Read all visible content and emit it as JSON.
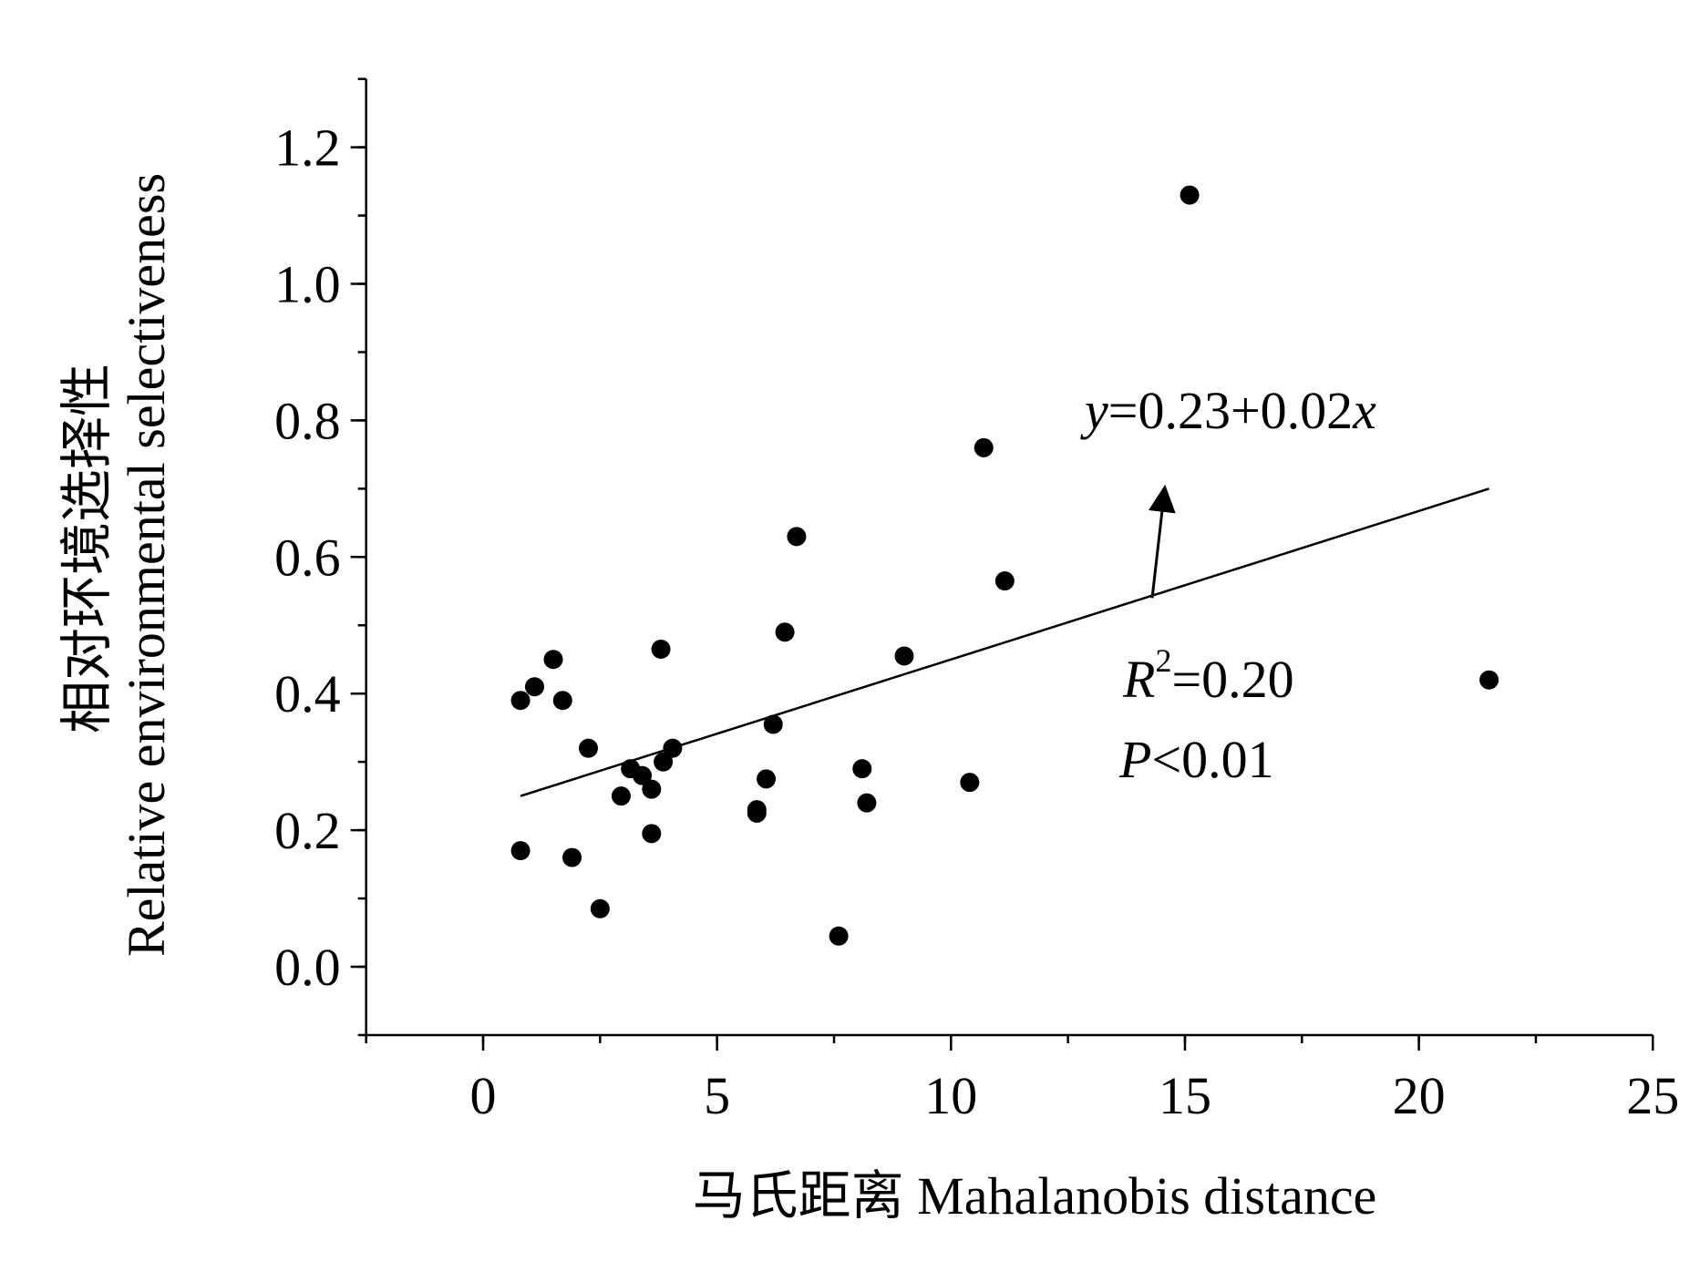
{
  "chart_data": {
    "type": "scatter",
    "xlabel": "马氏距离 Mahalanobis distance",
    "ylabel_line1": "相对环境选择性",
    "ylabel_line2": "Relative environmental selectiveness",
    "xlim": [
      -2.5,
      25
    ],
    "ylim": [
      -0.1,
      1.3
    ],
    "x_ticks": [
      0,
      5,
      10,
      15,
      20,
      25
    ],
    "x_tick_labels": [
      "0",
      "5",
      "10",
      "15",
      "20",
      "25"
    ],
    "y_ticks": [
      0.0,
      0.2,
      0.4,
      0.6,
      0.8,
      1.0,
      1.2
    ],
    "y_tick_labels": [
      "0.0",
      "0.2",
      "0.4",
      "0.6",
      "0.8",
      "1.0",
      "1.2"
    ],
    "points": [
      {
        "x": 0.8,
        "y": 0.17
      },
      {
        "x": 0.8,
        "y": 0.39
      },
      {
        "x": 1.1,
        "y": 0.41
      },
      {
        "x": 1.5,
        "y": 0.45
      },
      {
        "x": 1.7,
        "y": 0.39
      },
      {
        "x": 1.9,
        "y": 0.16
      },
      {
        "x": 2.25,
        "y": 0.32
      },
      {
        "x": 2.5,
        "y": 0.085
      },
      {
        "x": 2.95,
        "y": 0.25
      },
      {
        "x": 3.15,
        "y": 0.29
      },
      {
        "x": 3.4,
        "y": 0.28
      },
      {
        "x": 3.6,
        "y": 0.26
      },
      {
        "x": 3.6,
        "y": 0.195
      },
      {
        "x": 3.8,
        "y": 0.465
      },
      {
        "x": 3.85,
        "y": 0.3
      },
      {
        "x": 4.05,
        "y": 0.32
      },
      {
        "x": 5.85,
        "y": 0.23
      },
      {
        "x": 5.85,
        "y": 0.225
      },
      {
        "x": 6.05,
        "y": 0.275
      },
      {
        "x": 6.2,
        "y": 0.355
      },
      {
        "x": 6.45,
        "y": 0.49
      },
      {
        "x": 6.7,
        "y": 0.63
      },
      {
        "x": 7.6,
        "y": 0.045
      },
      {
        "x": 8.1,
        "y": 0.29
      },
      {
        "x": 8.2,
        "y": 0.24
      },
      {
        "x": 9.0,
        "y": 0.455
      },
      {
        "x": 10.4,
        "y": 0.27
      },
      {
        "x": 10.7,
        "y": 0.76
      },
      {
        "x": 11.15,
        "y": 0.565
      },
      {
        "x": 15.1,
        "y": 1.13
      },
      {
        "x": 21.5,
        "y": 0.42
      }
    ],
    "fit_line": {
      "x": [
        0.8,
        21.5
      ],
      "y": [
        0.25,
        0.7
      ]
    },
    "equation": {
      "y_var": "y",
      "text": "=0.23+0.02",
      "x_var": "x"
    },
    "r2": {
      "var": "R",
      "sup": "2",
      "text": "=0.20"
    },
    "p": {
      "var": "P",
      "text": "<0.01"
    },
    "annotation_arrow": {
      "from": [
        14.3,
        0.54
      ],
      "to": [
        14.55,
        0.69
      ]
    },
    "marker_color": "#000000"
  }
}
